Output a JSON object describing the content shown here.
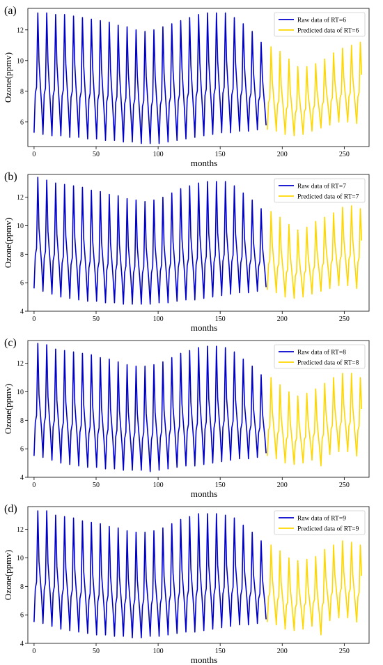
{
  "chart_data": [
    {
      "type": "line",
      "panel_label": "(a)",
      "xlabel": "months",
      "ylabel": "Ozone(ppmv)",
      "xlim": [
        -5,
        270
      ],
      "ylim": [
        4.4,
        13.4
      ],
      "xticks": [
        0,
        50,
        100,
        150,
        200,
        250
      ],
      "yticks": [
        6,
        8,
        10,
        12
      ],
      "legend_position": "top-right",
      "series": [
        {
          "name": "Raw data of RT=6",
          "color": "#0000cc",
          "x_start": 0,
          "peaks": [
            13.1,
            13.1,
            13.0,
            13.0,
            12.9,
            12.8,
            12.7,
            12.6,
            12.5,
            12.3,
            12.2,
            12.0,
            11.9,
            12.0,
            12.2,
            12.4,
            12.6,
            12.8,
            13.0,
            13.1,
            13.1,
            13.1,
            12.8,
            12.4,
            11.9,
            11.2
          ],
          "troughs": [
            5.3,
            5.2,
            5.1,
            5.1,
            5.0,
            5.0,
            4.9,
            4.9,
            4.8,
            4.8,
            4.7,
            4.7,
            4.6,
            4.6,
            4.6,
            4.7,
            4.8,
            4.9,
            5.0,
            5.1,
            5.2,
            5.3,
            5.3,
            5.4,
            5.4,
            5.5
          ]
        },
        {
          "name": "Predicted data of RT=6",
          "color": "#ffd700",
          "x_start": 188,
          "peaks": [
            10.9,
            10.6,
            10.1,
            9.6,
            9.6,
            9.8,
            10.1,
            10.5,
            10.8,
            11.0,
            11.2
          ],
          "troughs": [
            5.5,
            5.4,
            5.2,
            5.1,
            5.2,
            5.4,
            5.6,
            5.8,
            6.0,
            6.0,
            5.9
          ]
        }
      ]
    },
    {
      "type": "line",
      "panel_label": "(b)",
      "xlabel": "months",
      "ylabel": "Ozone(ppmv)",
      "xlim": [
        -5,
        270
      ],
      "ylim": [
        4.0,
        13.6
      ],
      "xticks": [
        0,
        50,
        100,
        150,
        200,
        250
      ],
      "yticks": [
        4,
        6,
        8,
        10,
        12
      ],
      "legend_position": "top-right",
      "series": [
        {
          "name": "Raw data of RT=7",
          "color": "#0000cc",
          "x_start": 0,
          "peaks": [
            13.4,
            13.2,
            13.0,
            12.9,
            12.8,
            12.7,
            12.5,
            12.4,
            12.2,
            12.1,
            11.9,
            11.8,
            11.7,
            11.8,
            12.0,
            12.3,
            12.6,
            12.8,
            13.0,
            13.1,
            13.1,
            13.1,
            12.8,
            12.3,
            11.8,
            11.2
          ],
          "troughs": [
            5.6,
            5.4,
            5.2,
            5.0,
            4.9,
            4.8,
            4.7,
            4.7,
            4.6,
            4.6,
            4.5,
            4.5,
            4.5,
            4.5,
            4.6,
            4.6,
            4.7,
            4.8,
            4.8,
            4.9,
            5.0,
            5.1,
            5.2,
            5.3,
            5.3,
            5.4
          ],
          "wavy": true
        },
        {
          "name": "Predicted data of RT=7",
          "color": "#ffd700",
          "x_start": 188,
          "peaks": [
            11.0,
            10.6,
            10.1,
            9.7,
            9.9,
            10.3,
            10.6,
            10.9,
            11.3,
            11.4,
            11.2
          ],
          "troughs": [
            5.5,
            5.3,
            5.0,
            4.9,
            5.0,
            5.2,
            5.4,
            5.6,
            5.8,
            5.8,
            5.6
          ]
        }
      ]
    },
    {
      "type": "line",
      "panel_label": "(c)",
      "xlabel": "months",
      "ylabel": "Ozone(ppmv)",
      "xlim": [
        -5,
        270
      ],
      "ylim": [
        4.0,
        13.6
      ],
      "xticks": [
        0,
        50,
        100,
        150,
        200,
        250
      ],
      "yticks": [
        4,
        6,
        8,
        10,
        12
      ],
      "legend_position": "top-right",
      "series": [
        {
          "name": "Raw data of RT=8",
          "color": "#0000cc",
          "x_start": 0,
          "peaks": [
            13.4,
            13.3,
            13.0,
            12.9,
            12.8,
            12.7,
            12.6,
            12.4,
            12.3,
            12.1,
            11.9,
            11.8,
            11.8,
            11.9,
            12.1,
            12.4,
            12.7,
            12.9,
            13.1,
            13.2,
            13.2,
            13.1,
            12.8,
            12.3,
            11.8,
            11.2
          ],
          "troughs": [
            5.5,
            5.4,
            5.2,
            5.0,
            4.9,
            4.8,
            4.7,
            4.7,
            4.6,
            4.6,
            4.5,
            4.5,
            4.5,
            4.4,
            4.5,
            4.6,
            4.7,
            4.8,
            4.8,
            4.9,
            5.0,
            5.1,
            5.2,
            5.3,
            5.3,
            5.4
          ],
          "wavy": true
        },
        {
          "name": "Predicted data of RT=8",
          "color": "#ffd700",
          "x_start": 188,
          "peaks": [
            11.0,
            10.5,
            10.0,
            9.7,
            9.9,
            10.2,
            10.6,
            11.0,
            11.3,
            11.3,
            11.0
          ],
          "troughs": [
            5.5,
            5.3,
            5.0,
            4.9,
            5.0,
            5.2,
            4.8,
            5.6,
            5.8,
            5.8,
            5.5
          ]
        }
      ]
    },
    {
      "type": "line",
      "panel_label": "(d)",
      "xlabel": "months",
      "ylabel": "Ozone(ppmv)",
      "xlim": [
        -5,
        270
      ],
      "ylim": [
        4.0,
        13.6
      ],
      "xticks": [
        0,
        50,
        100,
        150,
        200,
        250
      ],
      "yticks": [
        4,
        6,
        8,
        10,
        12
      ],
      "legend_position": "top-right",
      "series": [
        {
          "name": "Raw data of RT=9",
          "color": "#0000cc",
          "x_start": 0,
          "peaks": [
            13.3,
            13.3,
            13.0,
            12.9,
            12.8,
            12.6,
            12.5,
            12.4,
            12.2,
            12.1,
            11.9,
            11.8,
            11.8,
            11.9,
            12.1,
            12.4,
            12.7,
            12.9,
            13.1,
            13.1,
            13.1,
            13.0,
            12.8,
            12.3,
            11.8,
            11.2
          ],
          "troughs": [
            5.5,
            5.4,
            5.2,
            5.0,
            4.9,
            4.8,
            4.7,
            4.6,
            4.6,
            4.5,
            4.5,
            4.4,
            4.4,
            4.5,
            4.5,
            4.6,
            4.7,
            4.8,
            4.8,
            4.9,
            5.0,
            5.1,
            5.2,
            5.3,
            5.3,
            5.4
          ],
          "wavy": true
        },
        {
          "name": "Predicted data of RT=9",
          "color": "#ffd700",
          "x_start": 188,
          "peaks": [
            10.9,
            10.5,
            10.0,
            9.8,
            9.9,
            10.1,
            10.6,
            10.9,
            11.2,
            11.1,
            10.9
          ],
          "troughs": [
            5.5,
            5.3,
            5.0,
            4.9,
            5.0,
            5.2,
            4.6,
            5.6,
            5.8,
            5.8,
            5.5
          ]
        }
      ]
    }
  ]
}
